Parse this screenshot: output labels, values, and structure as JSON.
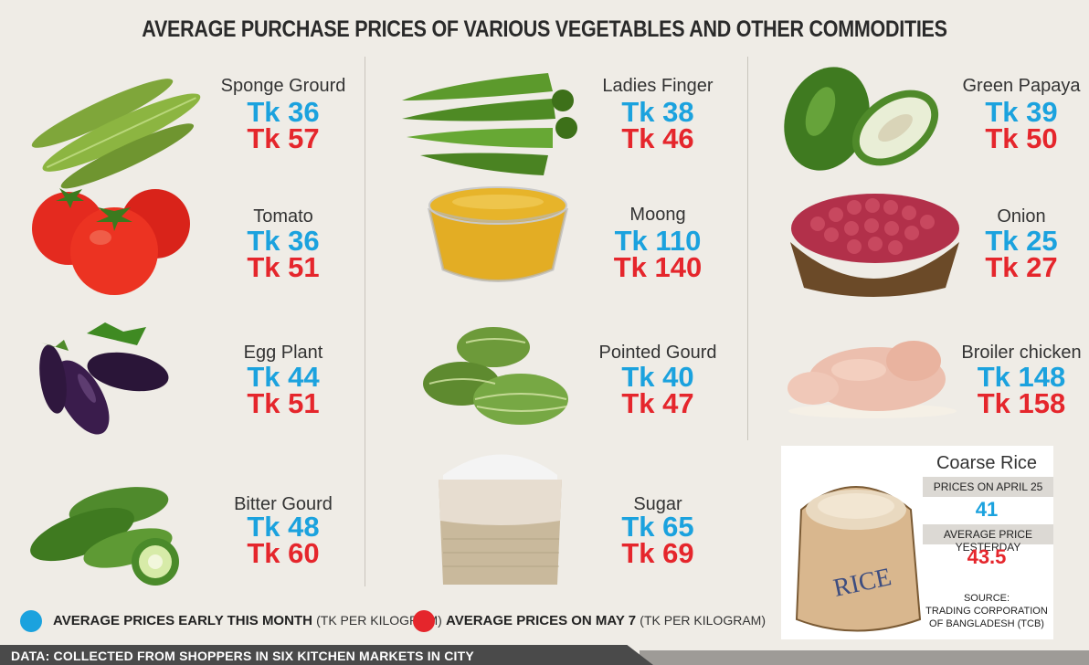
{
  "title": "AVERAGE PURCHASE PRICES OF VARIOUS VEGETABLES AND OTHER COMMODITIES",
  "colors": {
    "early_month": "#1ba2de",
    "may7": "#e5262c",
    "background": "#efece6"
  },
  "items": [
    {
      "name": "Sponge Grourd",
      "early": "Tk 36",
      "may7": "Tk 57",
      "icon": "sponge-gourd-icon"
    },
    {
      "name": "Ladies Finger",
      "early": "Tk 38",
      "may7": "Tk 46",
      "icon": "okra-icon"
    },
    {
      "name": "Green Papaya",
      "early": "Tk  39",
      "may7": "Tk 50",
      "icon": "papaya-icon"
    },
    {
      "name": "Tomato",
      "early": "Tk 36",
      "may7": "Tk 51",
      "icon": "tomato-icon"
    },
    {
      "name": "Moong",
      "early": "Tk 110",
      "may7": "Tk 140",
      "icon": "lentil-bowl-icon"
    },
    {
      "name": "Onion",
      "early": "Tk 25",
      "may7": "Tk 27",
      "icon": "onion-basket-icon"
    },
    {
      "name": "Egg Plant",
      "early": "Tk 44",
      "may7": "Tk 51",
      "icon": "eggplant-icon"
    },
    {
      "name": "Pointed Gourd",
      "early": "Tk 40",
      "may7": "Tk 47",
      "icon": "pointed-gourd-icon"
    },
    {
      "name": "Broiler chicken",
      "early": "Tk 148",
      "may7": "Tk 158",
      "icon": "chicken-icon"
    },
    {
      "name": "Bitter Gourd",
      "early": "Tk 48",
      "may7": "Tk 60",
      "icon": "bitter-gourd-icon"
    },
    {
      "name": "Sugar",
      "early": "Tk 65",
      "may7": "Tk 69",
      "icon": "sugar-sack-icon"
    }
  ],
  "rice": {
    "name": "Coarse Rice",
    "band1": "PRICES ON APRIL 25",
    "value1": "41",
    "band2": "AVERAGE PRICE YESTERDAY",
    "value2": "43.5",
    "sack_text": "RICE",
    "source_l1": "SOURCE:",
    "source_l2": "TRADING CORPORATION",
    "source_l3": "OF BANGLADESH (TCB)"
  },
  "legend": {
    "early_bold": "AVERAGE PRICES EARLY THIS MONTH",
    "early_unit": "(TK PER KILOGRAM)",
    "may_bold": "AVERAGE PRICES ON MAY 7",
    "may_unit": "(TK PER KILOGRAM)"
  },
  "footer": "DATA: COLLECTED FROM SHOPPERS IN SIX KITCHEN MARKETS IN CITY"
}
